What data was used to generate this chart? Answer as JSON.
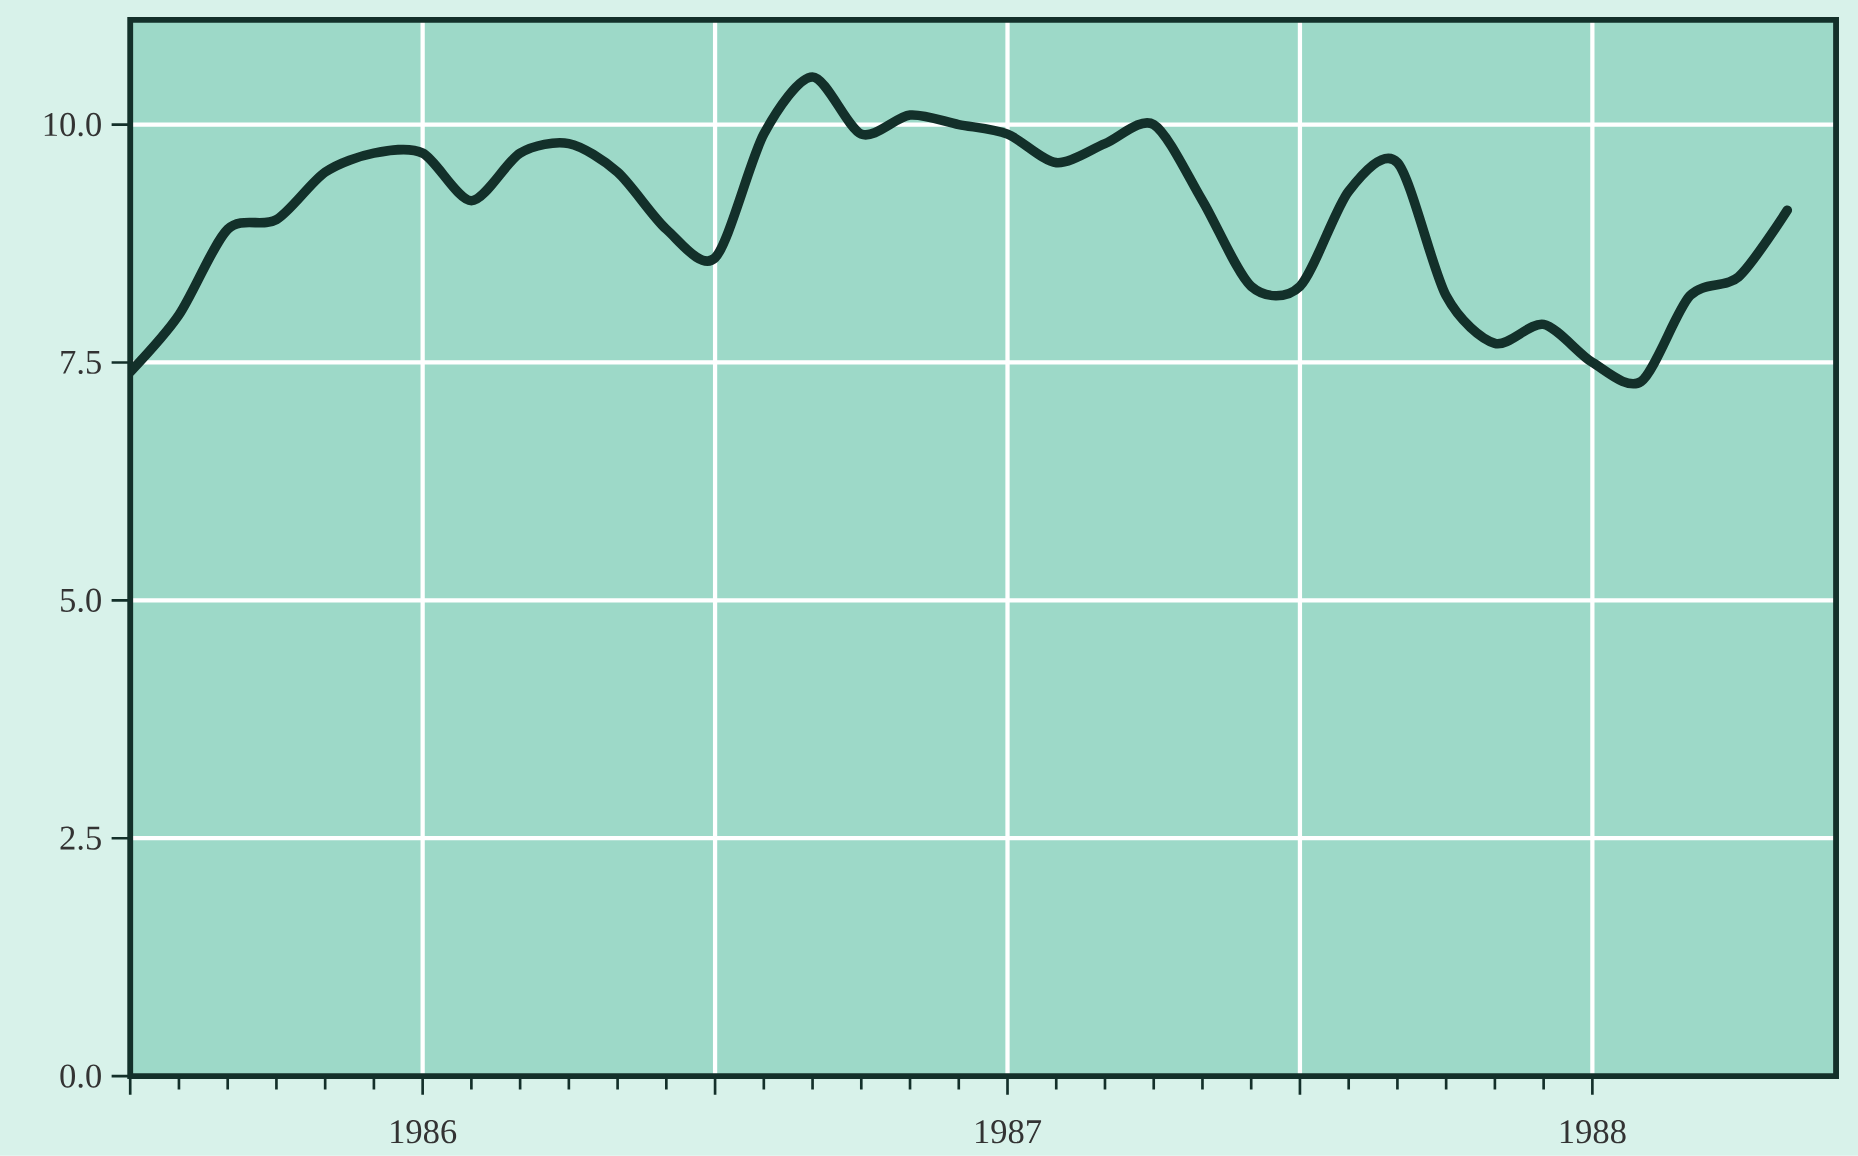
{
  "chart_data": {
    "type": "line",
    "x": [
      "1986-01",
      "1986-02",
      "1986-03",
      "1986-04",
      "1986-05",
      "1986-06",
      "1986-07",
      "1986-08",
      "1986-09",
      "1986-10",
      "1986-11",
      "1986-12",
      "1987-01",
      "1987-02",
      "1987-03",
      "1987-04",
      "1987-05",
      "1987-06",
      "1987-07",
      "1987-08",
      "1987-09",
      "1987-10",
      "1987-11",
      "1987-12",
      "1988-01",
      "1988-02",
      "1988-03",
      "1988-04",
      "1988-05",
      "1988-06",
      "1988-07",
      "1988-08",
      "1988-09",
      "1988-10",
      "1988-11"
    ],
    "series": [
      {
        "color": "#13302a",
        "values": [
          7.4,
          8.0,
          8.9,
          9.0,
          9.5,
          9.7,
          9.7,
          9.2,
          9.7,
          9.8,
          9.5,
          8.9,
          8.6,
          9.9,
          10.5,
          9.9,
          10.1,
          10.0,
          9.9,
          9.6,
          9.8,
          10.0,
          9.2,
          8.3,
          8.3,
          9.3,
          9.6,
          8.2,
          7.7,
          7.9,
          7.5,
          7.3,
          8.2,
          8.4,
          9.1
        ]
      }
    ],
    "xlim": [
      "1986-01",
      "1988-12"
    ],
    "xticks": [
      {
        "value": "1986-01",
        "label": null
      },
      {
        "value": "1986-07",
        "label": "1986"
      },
      {
        "value": "1987-01",
        "label": null
      },
      {
        "value": "1987-07",
        "label": "1987"
      },
      {
        "value": "1988-01",
        "label": null
      },
      {
        "value": "1988-07",
        "label": "1988"
      }
    ],
    "ylim": [
      0,
      11.1
    ],
    "yticks": [
      {
        "value": 0,
        "label": "0.0"
      },
      {
        "value": 2.5,
        "label": "2.5"
      },
      {
        "value": 5,
        "label": "5.0"
      },
      {
        "value": 7.5,
        "label": "7.5"
      },
      {
        "value": 10,
        "label": "10.0"
      }
    ],
    "grid": true,
    "marker": "none",
    "line_style": "solid"
  }
}
